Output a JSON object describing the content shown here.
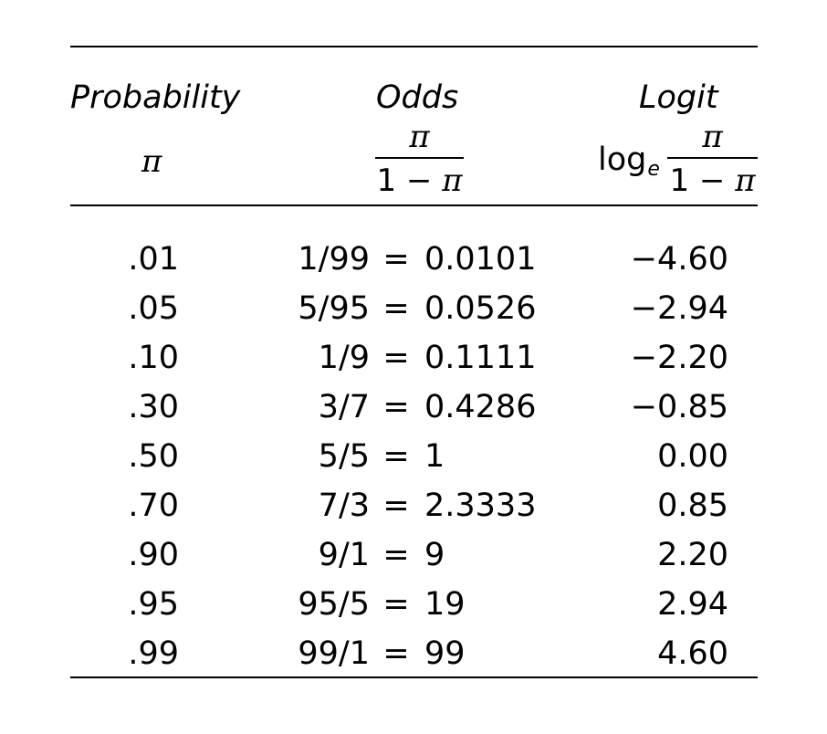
{
  "table": {
    "headers": {
      "probability": "Probability",
      "probability_symbol": "π",
      "odds": "Odds",
      "odds_numerator": "π",
      "odds_denominator_prefix": "1 − ",
      "odds_denominator_symbol": "π",
      "logit": "Logit",
      "logit_log": "log",
      "logit_log_base": "e",
      "logit_numerator": "π",
      "logit_denominator_prefix": "1 − ",
      "logit_denominator_symbol": "π"
    },
    "equals": "=",
    "rows": [
      {
        "probability": ".01",
        "ratio": "1/99",
        "odds_value": "0.0101",
        "logit": "−4.60"
      },
      {
        "probability": ".05",
        "ratio": "5/95",
        "odds_value": "0.0526",
        "logit": "−2.94"
      },
      {
        "probability": ".10",
        "ratio": "1/9",
        "odds_value": "0.1111",
        "logit": "−2.20"
      },
      {
        "probability": ".30",
        "ratio": "3/7",
        "odds_value": "0.4286",
        "logit": "−0.85"
      },
      {
        "probability": ".50",
        "ratio": "5/5",
        "odds_value": "1",
        "logit": "0.00"
      },
      {
        "probability": ".70",
        "ratio": "7/3",
        "odds_value": "2.3333",
        "logit": "0.85"
      },
      {
        "probability": ".90",
        "ratio": "9/1",
        "odds_value": "9",
        "logit": "2.20"
      },
      {
        "probability": ".95",
        "ratio": "95/5",
        "odds_value": "19",
        "logit": "2.94"
      },
      {
        "probability": ".99",
        "ratio": "99/1",
        "odds_value": "99",
        "logit": "4.60"
      }
    ]
  }
}
